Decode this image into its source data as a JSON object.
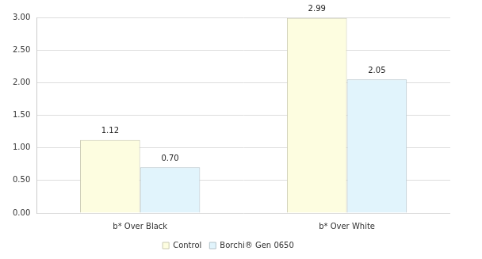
{
  "chart_data": {
    "type": "bar",
    "categories": [
      "b* Over Black",
      "b* Over White"
    ],
    "series": [
      {
        "name": "Control",
        "color": "#fdfde0",
        "values": [
          1.12,
          2.99
        ],
        "value_labels": [
          "1.12",
          "2.99"
        ]
      },
      {
        "name": "Borchi® Gen 0650",
        "color": "#e1f4fc",
        "values": [
          0.7,
          2.05
        ],
        "value_labels": [
          "0.70",
          "2.05"
        ]
      }
    ],
    "ylim": [
      0,
      3
    ],
    "yticks": [
      {
        "value": 0,
        "label": "0.00"
      },
      {
        "value": 0.5,
        "label": "0.50"
      },
      {
        "value": 1,
        "label": "1.00"
      },
      {
        "value": 1.5,
        "label": "1.50"
      },
      {
        "value": 2,
        "label": "2.00"
      },
      {
        "value": 2.5,
        "label": "2.50"
      },
      {
        "value": 3,
        "label": "3.00"
      }
    ],
    "grid": true,
    "legend": "bottom",
    "data_labels": true
  }
}
